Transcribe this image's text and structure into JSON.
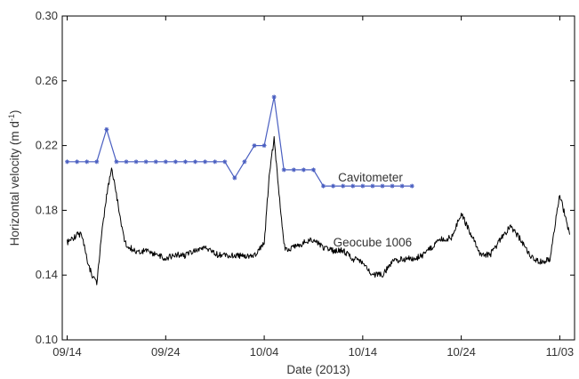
{
  "chart_data": {
    "type": "line",
    "title": "",
    "xlabel": "Date (2013)",
    "ylabel_main": "Horizontal velocity (m d",
    "ylabel_sup": "-1",
    "ylabel_close": ")",
    "xlim": [
      "2013-09-13T12:00",
      "2013-11-04T12:00"
    ],
    "ylim": [
      0.1,
      0.3
    ],
    "x_ticks": [
      {
        "date": "2013-09-14",
        "label": "09/14"
      },
      {
        "date": "2013-09-24",
        "label": "09/24"
      },
      {
        "date": "2013-10-04",
        "label": "10/04"
      },
      {
        "date": "2013-10-14",
        "label": "10/14"
      },
      {
        "date": "2013-10-24",
        "label": "10/24"
      },
      {
        "date": "2013-11-03",
        "label": "11/03"
      }
    ],
    "y_ticks": [
      {
        "value": 0.1,
        "label": "0.10"
      },
      {
        "value": 0.14,
        "label": "0.14"
      },
      {
        "value": 0.18,
        "label": "0.18"
      },
      {
        "value": 0.22,
        "label": "0.22"
      },
      {
        "value": 0.26,
        "label": "0.26"
      },
      {
        "value": 0.3,
        "label": "0.30"
      }
    ],
    "grid": false,
    "series": [
      {
        "name": "Cavitometer",
        "color": "#4a5fc1",
        "marker": "asterisk",
        "x": [
          "2013-09-14",
          "2013-09-15",
          "2013-09-16",
          "2013-09-17",
          "2013-09-18",
          "2013-09-19",
          "2013-09-20",
          "2013-09-21",
          "2013-09-22",
          "2013-09-23",
          "2013-09-24",
          "2013-09-25",
          "2013-09-26",
          "2013-09-27",
          "2013-09-28",
          "2013-09-29",
          "2013-09-30",
          "2013-10-01",
          "2013-10-02",
          "2013-10-03",
          "2013-10-04",
          "2013-10-05",
          "2013-10-06",
          "2013-10-07",
          "2013-10-08",
          "2013-10-09",
          "2013-10-10",
          "2013-10-11",
          "2013-10-12",
          "2013-10-13",
          "2013-10-14",
          "2013-10-15",
          "2013-10-16",
          "2013-10-17",
          "2013-10-18",
          "2013-10-19"
        ],
        "y": [
          0.21,
          0.21,
          0.21,
          0.21,
          0.23,
          0.21,
          0.21,
          0.21,
          0.21,
          0.21,
          0.21,
          0.21,
          0.21,
          0.21,
          0.21,
          0.21,
          0.21,
          0.2,
          0.21,
          0.22,
          0.22,
          0.25,
          0.205,
          0.205,
          0.205,
          0.205,
          0.195,
          0.195,
          0.195,
          0.195,
          0.195,
          0.195,
          0.195,
          0.195,
          0.195,
          0.195
        ]
      },
      {
        "name": "Geocube 1006",
        "color": "#000000",
        "marker": "none",
        "x": [
          "2013-09-14",
          "2013-09-15",
          "2013-09-15T12:00",
          "2013-09-16",
          "2013-09-16T12:00",
          "2013-09-17",
          "2013-09-17T12:00",
          "2013-09-18",
          "2013-09-18T12:00",
          "2013-09-19",
          "2013-09-19T12:00",
          "2013-09-20",
          "2013-09-21",
          "2013-09-22",
          "2013-09-23",
          "2013-09-24",
          "2013-09-25",
          "2013-09-26",
          "2013-09-27",
          "2013-09-28",
          "2013-09-29",
          "2013-09-30",
          "2013-10-01",
          "2013-10-02",
          "2013-10-03",
          "2013-10-04",
          "2013-10-04T12:00",
          "2013-10-05",
          "2013-10-05T12:00",
          "2013-10-06",
          "2013-10-06T12:00",
          "2013-10-07",
          "2013-10-08",
          "2013-10-09",
          "2013-10-10",
          "2013-10-11",
          "2013-10-12",
          "2013-10-13",
          "2013-10-14",
          "2013-10-15",
          "2013-10-16",
          "2013-10-17",
          "2013-10-18",
          "2013-10-19",
          "2013-10-20",
          "2013-10-21",
          "2013-10-22",
          "2013-10-23",
          "2013-10-24",
          "2013-10-25",
          "2013-10-26",
          "2013-10-27",
          "2013-10-28",
          "2013-10-29",
          "2013-10-30",
          "2013-10-31",
          "2013-11-01",
          "2013-11-02",
          "2013-11-03",
          "2013-11-04"
        ],
        "y": [
          0.16,
          0.165,
          0.165,
          0.15,
          0.14,
          0.135,
          0.165,
          0.19,
          0.205,
          0.19,
          0.17,
          0.158,
          0.155,
          0.155,
          0.153,
          0.15,
          0.153,
          0.152,
          0.155,
          0.157,
          0.153,
          0.152,
          0.152,
          0.152,
          0.152,
          0.16,
          0.2,
          0.225,
          0.19,
          0.158,
          0.155,
          0.157,
          0.16,
          0.162,
          0.157,
          0.155,
          0.155,
          0.15,
          0.148,
          0.14,
          0.14,
          0.148,
          0.15,
          0.15,
          0.152,
          0.157,
          0.162,
          0.163,
          0.178,
          0.165,
          0.152,
          0.153,
          0.162,
          0.17,
          0.162,
          0.152,
          0.148,
          0.15,
          0.19,
          0.165
        ]
      }
    ],
    "annotations": [
      {
        "text": "Cavitometer",
        "date": "2013-10-11T12:00",
        "value": 0.2
      },
      {
        "text": "Geocube 1006",
        "date": "2013-10-11",
        "value": 0.16
      }
    ]
  }
}
